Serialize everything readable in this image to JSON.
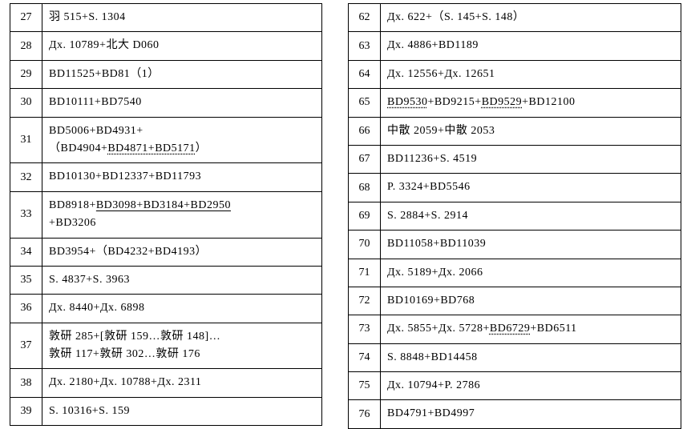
{
  "left": [
    {
      "n": "27",
      "v": "羽 515+S. 1304"
    },
    {
      "n": "28",
      "v": "Дх. 10789+北大 D060"
    },
    {
      "n": "29",
      "v": "BD11525+BD81（1）"
    },
    {
      "n": "30",
      "v": "BD10111+BD7540"
    },
    {
      "n": "31",
      "v": "BD5006+BD4931+\n（BD4904+<d>BD4871+BD5171</d>）",
      "tall": true
    },
    {
      "n": "32",
      "v": "BD10130+BD12337+BD11793"
    },
    {
      "n": "33",
      "v": "BD8918+<u>BD3098+BD3184+BD2950</u>\n+BD3206",
      "tall": true
    },
    {
      "n": "34",
      "v": "BD3954+（BD4232+BD4193）"
    },
    {
      "n": "35",
      "v": "S. 4837+S. 3963"
    },
    {
      "n": "36",
      "v": "Дх. 8440+Дх. 6898"
    },
    {
      "n": "37",
      "v": "敦研 285+[敦研 159…敦研 148]…\n敦研 117+敦研 302…敦研 176",
      "tall": true
    },
    {
      "n": "38",
      "v": "Дх. 2180+Дх. 10788+Дх. 2311"
    },
    {
      "n": "39",
      "v": "S. 10316+S. 159"
    }
  ],
  "right": [
    {
      "n": "62",
      "v": "Дх. 622+（S. 145+S. 148）"
    },
    {
      "n": "63",
      "v": "Дх. 4886+BD1189"
    },
    {
      "n": "64",
      "v": "Дх. 12556+Дх. 12651"
    },
    {
      "n": "65",
      "v": "<d>BD9530</d>+BD9215+<d>BD9529</d>+BD12100"
    },
    {
      "n": "66",
      "v": "中散 2059+中散 2053"
    },
    {
      "n": "67",
      "v": "BD11236+S. 4519"
    },
    {
      "n": "68",
      "v": "P. 3324+BD5546"
    },
    {
      "n": "69",
      "v": "S. 2884+S. 2914"
    },
    {
      "n": "70",
      "v": "BD11058+BD11039"
    },
    {
      "n": "71",
      "v": "Дх. 5189+Дх. 2066"
    },
    {
      "n": "72",
      "v": "BD10169+BD768"
    },
    {
      "n": "73",
      "v": "Дх. 5855+Дх. 5728+<d>BD6729</d>+BD6511"
    },
    {
      "n": "74",
      "v": "S. 8848+BD14458"
    },
    {
      "n": "75",
      "v": "Дх. 10794+P. 2786"
    },
    {
      "n": "76",
      "v": "BD4791+BD4997"
    }
  ]
}
